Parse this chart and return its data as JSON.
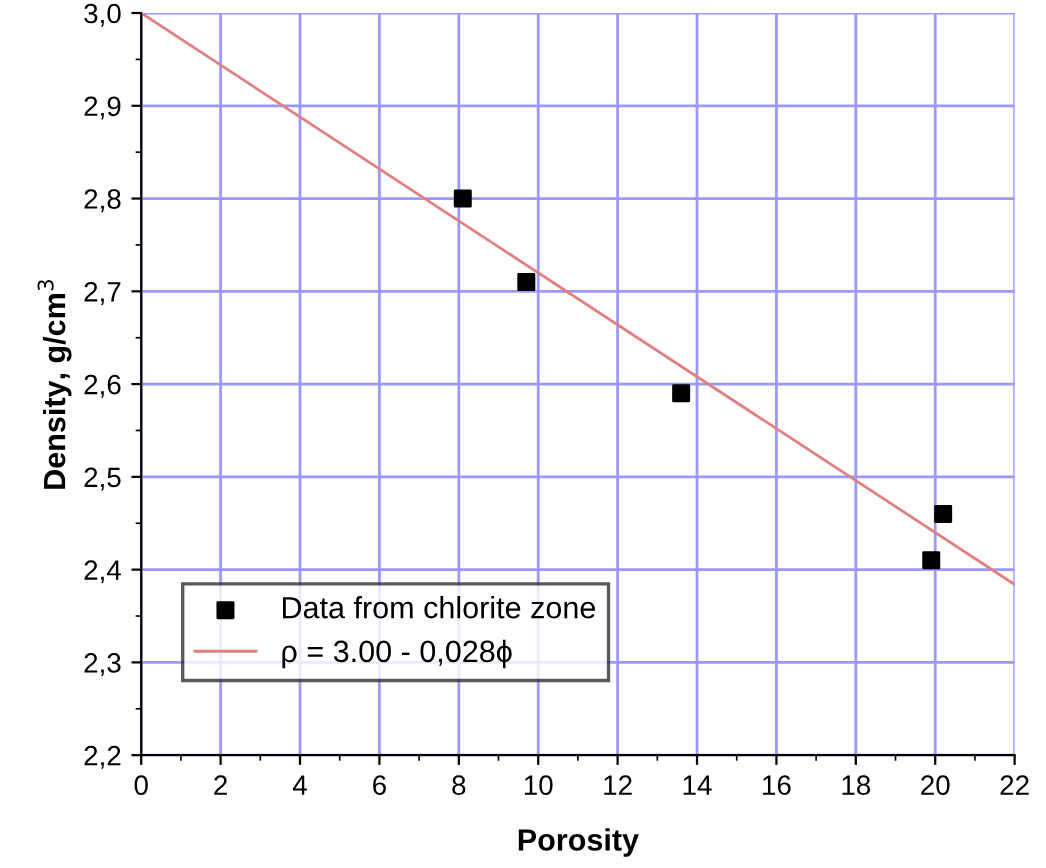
{
  "chart_data": {
    "type": "scatter",
    "xlabel": "Porosity",
    "ylabel": "Density, g/cm$^{3}$",
    "xlim": [
      0,
      22
    ],
    "ylim": [
      2.2,
      3.0
    ],
    "xticks": [
      0,
      2,
      4,
      6,
      8,
      10,
      12,
      14,
      16,
      18,
      20,
      22
    ],
    "yticks": [
      {
        "value": 2.2,
        "label": "2,2"
      },
      {
        "value": 2.3,
        "label": "2,3"
      },
      {
        "value": 2.4,
        "label": "2,4"
      },
      {
        "value": 2.5,
        "label": "2,5"
      },
      {
        "value": 2.6,
        "label": "2,6"
      },
      {
        "value": 2.7,
        "label": "2,7"
      },
      {
        "value": 2.8,
        "label": "2,8"
      },
      {
        "value": 2.9,
        "label": "2,9"
      },
      {
        "value": 3.0,
        "label": "3,0"
      }
    ],
    "grid": true,
    "legend": "bottom left",
    "series": [
      {
        "name": "Data from chlorite zone",
        "color": "#000000",
        "marker": "square",
        "x": [
          8.1,
          9.7,
          13.6,
          19.9,
          20.2
        ],
        "values": [
          2.8,
          2.71,
          2.59,
          2.41,
          2.46
        ]
      },
      {
        "name": "ρ = 3.00 - 0,028ϕ",
        "type": "line",
        "color": "#e08080",
        "marker": "none",
        "line_style": "solid",
        "x": [
          0,
          22
        ],
        "values": [
          3.0,
          2.384
        ]
      }
    ]
  }
}
